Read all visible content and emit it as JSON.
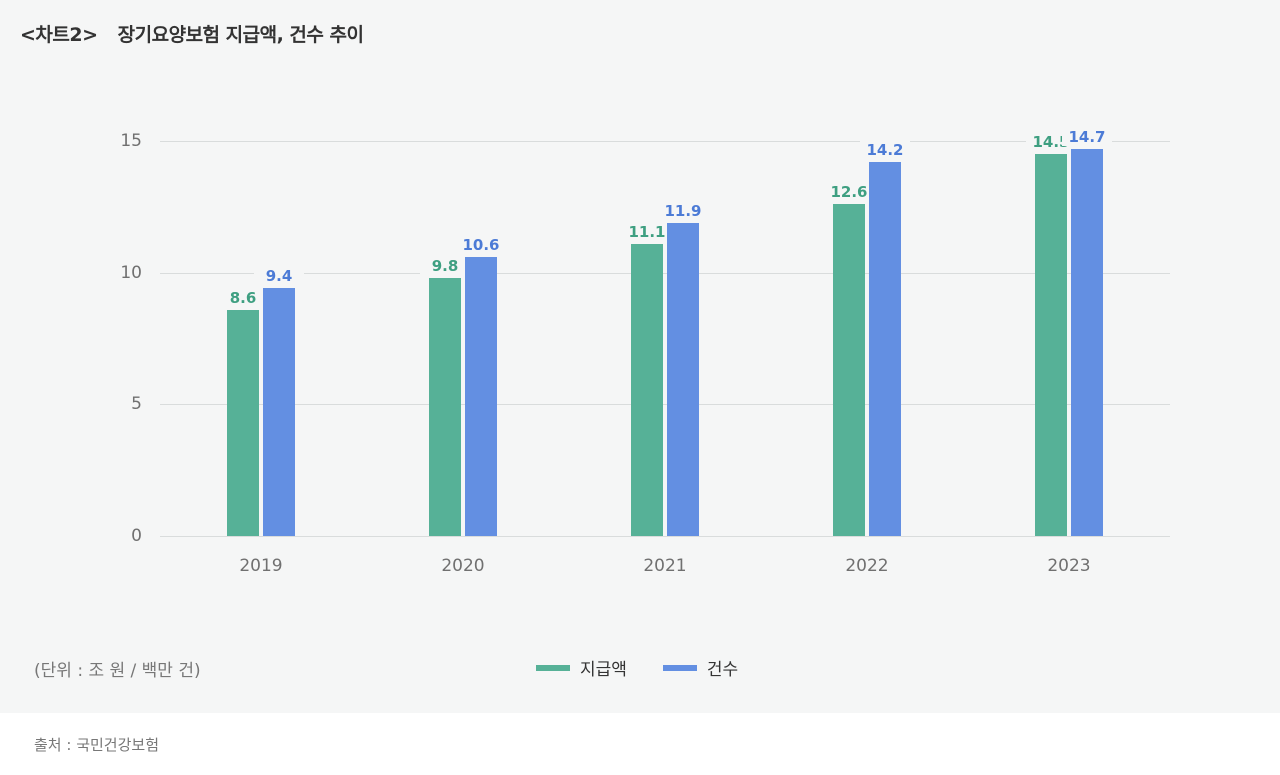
{
  "header": {
    "tag": "<차트2>",
    "title": "장기요양보험 지급액, 건수 추이"
  },
  "footer": {
    "unit": "(단위 : 조 원 / 백만 건)",
    "source": "출처 : 국민건강보험"
  },
  "legend": [
    {
      "label": "지급액",
      "color": "#56b197"
    },
    {
      "label": "건수",
      "color": "#638fe2"
    }
  ],
  "chart_data": {
    "type": "bar",
    "title": "장기요양보험 지급액, 건수 추이",
    "categories": [
      "2019",
      "2020",
      "2021",
      "2022",
      "2023"
    ],
    "series": [
      {
        "name": "지급액",
        "color": "#56b197",
        "values": [
          8.6,
          9.8,
          11.1,
          12.6,
          14.5
        ]
      },
      {
        "name": "건수",
        "color": "#638fe2",
        "values": [
          9.4,
          10.6,
          11.9,
          14.2,
          14.7
        ]
      }
    ],
    "xlabel": "",
    "ylabel": "",
    "unit": "(단위 : 조 원 / 백만 건)",
    "yticks": [
      0,
      5,
      10,
      15
    ],
    "ylim": [
      0,
      15
    ],
    "grid": true,
    "data_labels": true,
    "legend_position": "bottom",
    "source": "출처 : 국민건강보험"
  }
}
